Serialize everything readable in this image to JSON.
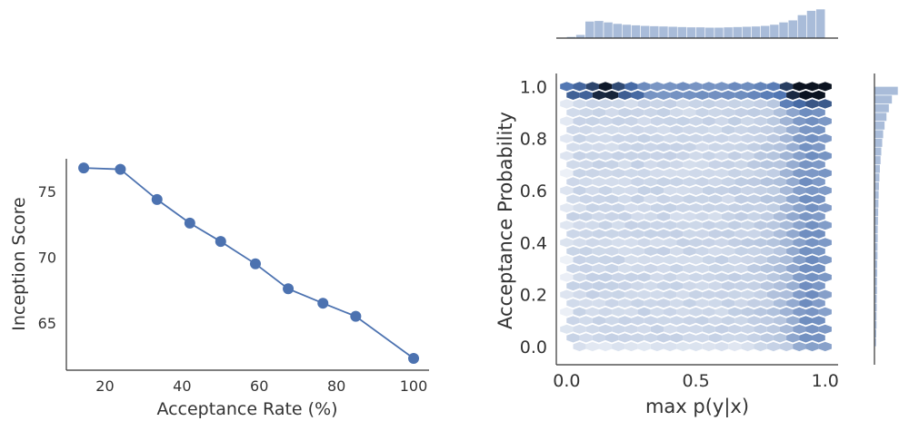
{
  "chart_data": [
    {
      "type": "line",
      "xlabel": "Acceptance Rate (%)",
      "ylabel": "Inception Score",
      "x": [
        14.5,
        24,
        33.5,
        42,
        50,
        59,
        67.5,
        76.5,
        85,
        100
      ],
      "y": [
        76.8,
        76.7,
        74.4,
        72.6,
        71.2,
        69.5,
        67.6,
        66.5,
        65.5,
        62.3
      ],
      "xticks": [
        "20",
        "40",
        "60",
        "80",
        "100"
      ],
      "yticks": [
        "65",
        "70",
        "75"
      ],
      "xlim": [
        10,
        104
      ],
      "ylim": [
        61.4,
        77.5
      ],
      "color": "#4c72b0",
      "grid": false
    },
    {
      "type": "heatmap",
      "subtype": "hexbin joint plot with marginal histograms",
      "xlabel": "max p(y|x)",
      "ylabel": "Acceptance Probability",
      "xticks": [
        "0.0",
        "0.5",
        "1.0"
      ],
      "yticks": [
        "0.0",
        "0.2",
        "0.4",
        "0.6",
        "0.8",
        "1.0"
      ],
      "xlim": [
        -0.04,
        1.05
      ],
      "ylim": [
        -0.07,
        1.05
      ],
      "colormap": [
        "#ffffff",
        "#4c72b0",
        "#0b1320"
      ],
      "grid": false,
      "marginal_x_histogram": [
        0.05,
        0.12,
        0.58,
        0.6,
        0.55,
        0.5,
        0.47,
        0.45,
        0.43,
        0.42,
        0.41,
        0.4,
        0.39,
        0.38,
        0.38,
        0.37,
        0.37,
        0.38,
        0.39,
        0.4,
        0.41,
        0.43,
        0.47,
        0.55,
        0.62,
        0.8,
        0.95,
        1.0
      ],
      "marginal_y_histogram": [
        0.08,
        0.09,
        0.1,
        0.1,
        0.11,
        0.11,
        0.12,
        0.12,
        0.13,
        0.13,
        0.14,
        0.14,
        0.15,
        0.15,
        0.16,
        0.17,
        0.18,
        0.19,
        0.2,
        0.22,
        0.24,
        0.27,
        0.3,
        0.34,
        0.38,
        0.44,
        0.52,
        0.62,
        0.75,
        1.0
      ],
      "color": "#4c72b0"
    }
  ]
}
